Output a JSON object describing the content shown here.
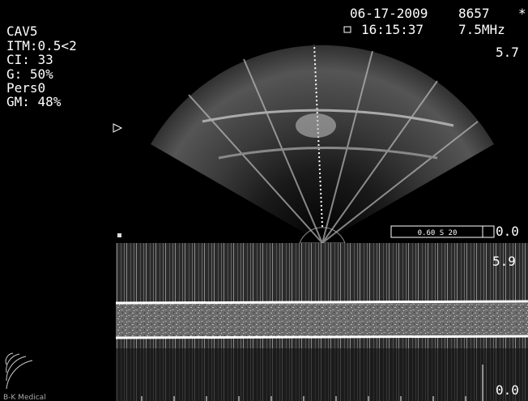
{
  "settings": [
    "CAV5",
    "ITM:0.5<2",
    "CI: 33",
    "G:  50%",
    "Pers0",
    "GM: 48%"
  ],
  "header": {
    "date": "06-17-2009",
    "id": "8657",
    "mark": "*",
    "time": "16:15:37",
    "frequency": "7.5MHz"
  },
  "image_depth": "5.7",
  "doppler": {
    "scale_box": "0.60 S 20",
    "top_zero": "0.0",
    "upper": "5.9",
    "lower_zero": "0.0"
  },
  "brand": "B-K Medical"
}
